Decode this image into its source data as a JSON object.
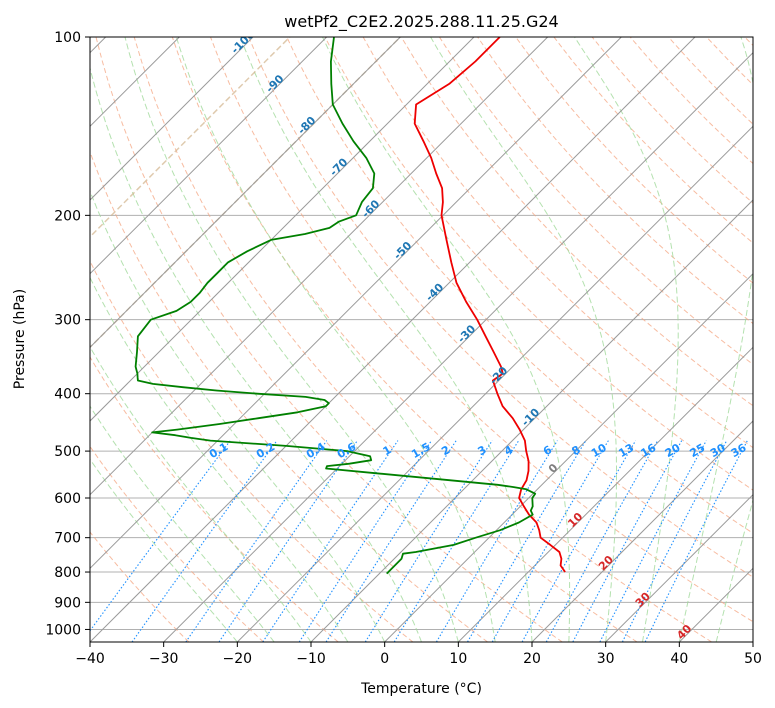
{
  "chart_data": {
    "type": "line",
    "subtype": "skew-T log-P diagram",
    "title": "wetPf2_C2E2.2025.288.11.25.G24",
    "xlabel": "Temperature (°C)",
    "ylabel": "Pressure (hPa)",
    "xlim": [
      -40,
      50
    ],
    "ylim": [
      1050,
      100
    ],
    "x_ticks": [
      -40,
      -30,
      -20,
      -10,
      0,
      10,
      20,
      30,
      40,
      50
    ],
    "x_tick_labels": [
      "−40",
      "−30",
      "−20",
      "−10",
      "0",
      "10",
      "20",
      "30",
      "40",
      "50"
    ],
    "y_ticks": [
      100,
      200,
      300,
      400,
      500,
      600,
      700,
      800,
      900,
      1000
    ],
    "y_tick_labels": [
      "100",
      "200",
      "300",
      "400",
      "500",
      "600",
      "700",
      "800",
      "900",
      "1000"
    ],
    "grid": true,
    "colors": {
      "temperature": "#ee0000",
      "dewpoint": "#008000",
      "isotherm": "#9a9a9a",
      "isotherm_label_cold": "#1f77b4",
      "isotherm_label_zero": "#7f7f7f",
      "isotherm_label_warm": "#d62728",
      "mixing_ratio": "#1e90ff",
      "dry_adiabat": "#f4a582",
      "moist_adiabat": "#a1d99b",
      "special": "#d2b48c"
    },
    "isotherm_labels": [
      {
        "t": -100,
        "text": "-100"
      },
      {
        "t": -90,
        "text": "-90"
      },
      {
        "t": -80,
        "text": "-80"
      },
      {
        "t": -70,
        "text": "-70"
      },
      {
        "t": -60,
        "text": "-60"
      },
      {
        "t": -50,
        "text": "-50"
      },
      {
        "t": -40,
        "text": "-40"
      },
      {
        "t": -30,
        "text": "-30"
      },
      {
        "t": -20,
        "text": "-20"
      },
      {
        "t": -10,
        "text": "-10"
      },
      {
        "t": 0,
        "text": "0"
      },
      {
        "t": 10,
        "text": "10"
      },
      {
        "t": 20,
        "text": "20"
      },
      {
        "t": 30,
        "text": "30"
      },
      {
        "t": 40,
        "text": "40"
      }
    ],
    "mixing_ratio_labels": [
      "0.1",
      "0.2",
      "0.4",
      "0.6",
      "1",
      "1.5",
      "2",
      "3",
      "4",
      "6",
      "8",
      "10",
      "13",
      "16",
      "20",
      "25",
      "30",
      "36"
    ],
    "series": [
      {
        "name": "Temperature",
        "p": [
          800,
          780,
          760,
          740,
          720,
          700,
          680,
          660,
          640,
          620,
          600,
          580,
          560,
          540,
          520,
          500,
          480,
          460,
          440,
          420,
          400,
          380,
          370,
          360,
          340,
          320,
          300,
          280,
          260,
          240,
          220,
          200,
          190,
          180,
          170,
          160,
          150,
          140,
          130,
          120,
          110,
          100
        ],
        "t": [
          15.0,
          13.5,
          12.7,
          11.5,
          9.3,
          7.0,
          5.8,
          4.4,
          2.3,
          0.5,
          -1.3,
          -2.2,
          -2.7,
          -3.7,
          -5.0,
          -6.7,
          -8.3,
          -10.5,
          -13.0,
          -16.0,
          -18.4,
          -20.8,
          -20.4,
          -21.6,
          -24.6,
          -27.8,
          -31.2,
          -35.1,
          -39.0,
          -42.5,
          -46.2,
          -50.2,
          -51.8,
          -53.8,
          -56.6,
          -59.4,
          -62.7,
          -66.3,
          -68.7,
          -67.0,
          -66.5,
          -66.5
        ]
      },
      {
        "name": "Dewpoint",
        "p": [
          805,
          780,
          760,
          745,
          740,
          720,
          700,
          680,
          660,
          640,
          630,
          620,
          600,
          590,
          580,
          575,
          570,
          560,
          545,
          535,
          530,
          525,
          518,
          510,
          500,
          490,
          480,
          475,
          470,
          465,
          460,
          450,
          440,
          430,
          420,
          415,
          410,
          405,
          400,
          395,
          390,
          385,
          380,
          375,
          370,
          360,
          340,
          320,
          300,
          290,
          280,
          270,
          260,
          250,
          240,
          230,
          220,
          215,
          210,
          205,
          200,
          190,
          180,
          170,
          160,
          150,
          140,
          130,
          120,
          110,
          100
        ],
        "t": [
          -9.0,
          -9.0,
          -9.0,
          -9.5,
          -8.0,
          -3.8,
          -1.8,
          0.5,
          2.0,
          2.8,
          2.0,
          1.7,
          0.5,
          0.3,
          -1.5,
          -3.5,
          -6.0,
          -13.0,
          -24.0,
          -31.5,
          -31.7,
          -29.0,
          -26.5,
          -27.2,
          -31.0,
          -40.0,
          -51.0,
          -54.0,
          -56.5,
          -60.0,
          -57.0,
          -52.0,
          -47.5,
          -43.0,
          -40.0,
          -40.0,
          -41.0,
          -44.0,
          -51.0,
          -57.0,
          -62.0,
          -66.5,
          -69.0,
          -69.5,
          -70.0,
          -71.2,
          -73.0,
          -75.0,
          -75.5,
          -73.2,
          -72.5,
          -72.5,
          -72.8,
          -72.8,
          -72.8,
          -71.7,
          -70.0,
          -66.2,
          -63.7,
          -63.3,
          -61.8,
          -62.8,
          -63.2,
          -65.0,
          -68.2,
          -72.2,
          -76.1,
          -80.0,
          -83.0,
          -86.1,
          -89.0
        ]
      }
    ]
  }
}
